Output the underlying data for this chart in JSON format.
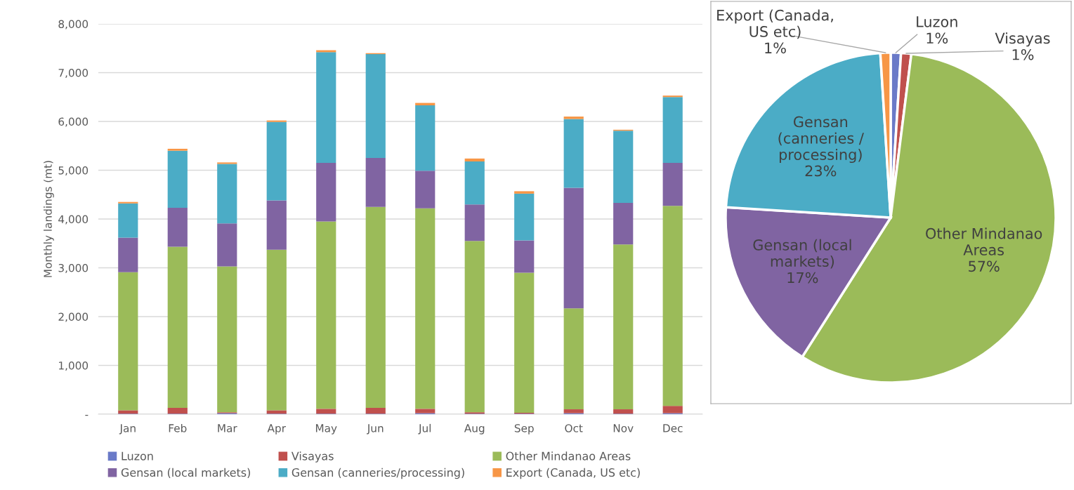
{
  "chart_data": [
    {
      "type": "bar",
      "stacked": true,
      "ylabel": "Monthly landings (mt)",
      "categories": [
        "Jan",
        "Feb",
        "Mar",
        "Apr",
        "May",
        "Jun",
        "Jul",
        "Aug",
        "Sep",
        "Oct",
        "Nov",
        "Dec"
      ],
      "series": [
        {
          "name": "Luzon",
          "color": "#6a7ac8",
          "values": [
            10,
            10,
            20,
            10,
            10,
            10,
            20,
            10,
            10,
            20,
            10,
            20
          ]
        },
        {
          "name": "Visayas",
          "color": "#c0504d",
          "values": [
            70,
            120,
            20,
            70,
            100,
            120,
            90,
            30,
            20,
            80,
            90,
            150
          ]
        },
        {
          "name": "Other Mindanao Areas",
          "color": "#9bbb59",
          "values": [
            2830,
            3300,
            2990,
            3290,
            3840,
            4120,
            4110,
            3510,
            2870,
            2070,
            3380,
            4100
          ]
        },
        {
          "name": "Gensan (local markets)",
          "color": "#8064a2",
          "values": [
            710,
            800,
            880,
            1010,
            1200,
            1000,
            770,
            750,
            660,
            2470,
            850,
            880
          ]
        },
        {
          "name": "Gensan (canneries/processing)",
          "color": "#4bacc6",
          "values": [
            700,
            1170,
            1220,
            1610,
            2270,
            2130,
            1340,
            880,
            960,
            1410,
            1480,
            1350
          ]
        },
        {
          "name": "Export (Canada, US etc)",
          "color": "#f79646",
          "values": [
            30,
            40,
            30,
            30,
            40,
            20,
            50,
            60,
            50,
            50,
            20,
            30
          ]
        }
      ],
      "ylim": [
        0,
        8000
      ],
      "yticks": [
        {
          "value": 0,
          "label": "-"
        },
        {
          "value": 1000,
          "label": "1,000"
        },
        {
          "value": 2000,
          "label": "2,000"
        },
        {
          "value": 3000,
          "label": "3,000"
        },
        {
          "value": 4000,
          "label": "4,000"
        },
        {
          "value": 5000,
          "label": "5,000"
        },
        {
          "value": 6000,
          "label": "6,000"
        },
        {
          "value": 7000,
          "label": "7,000"
        },
        {
          "value": 8000,
          "label": "8,000"
        }
      ],
      "grid": "y",
      "legend": "bottom"
    },
    {
      "type": "pie",
      "categories": [
        "Luzon",
        "Visayas",
        "Other Mindanao\nAreas",
        "Gensan (local\nmarkets)",
        "Gensan\n(canneries /\nprocessing)",
        "Export (Canada,\nUS etc)"
      ],
      "values": [
        1,
        1,
        57,
        17,
        23,
        1
      ],
      "value_labels": [
        "1%",
        "1%",
        "57%",
        "17%",
        "23%",
        "1%"
      ],
      "colors": [
        "#6a7ac8",
        "#c0504d",
        "#9bbb59",
        "#8064a2",
        "#4bacc6",
        "#f79646"
      ]
    }
  ]
}
